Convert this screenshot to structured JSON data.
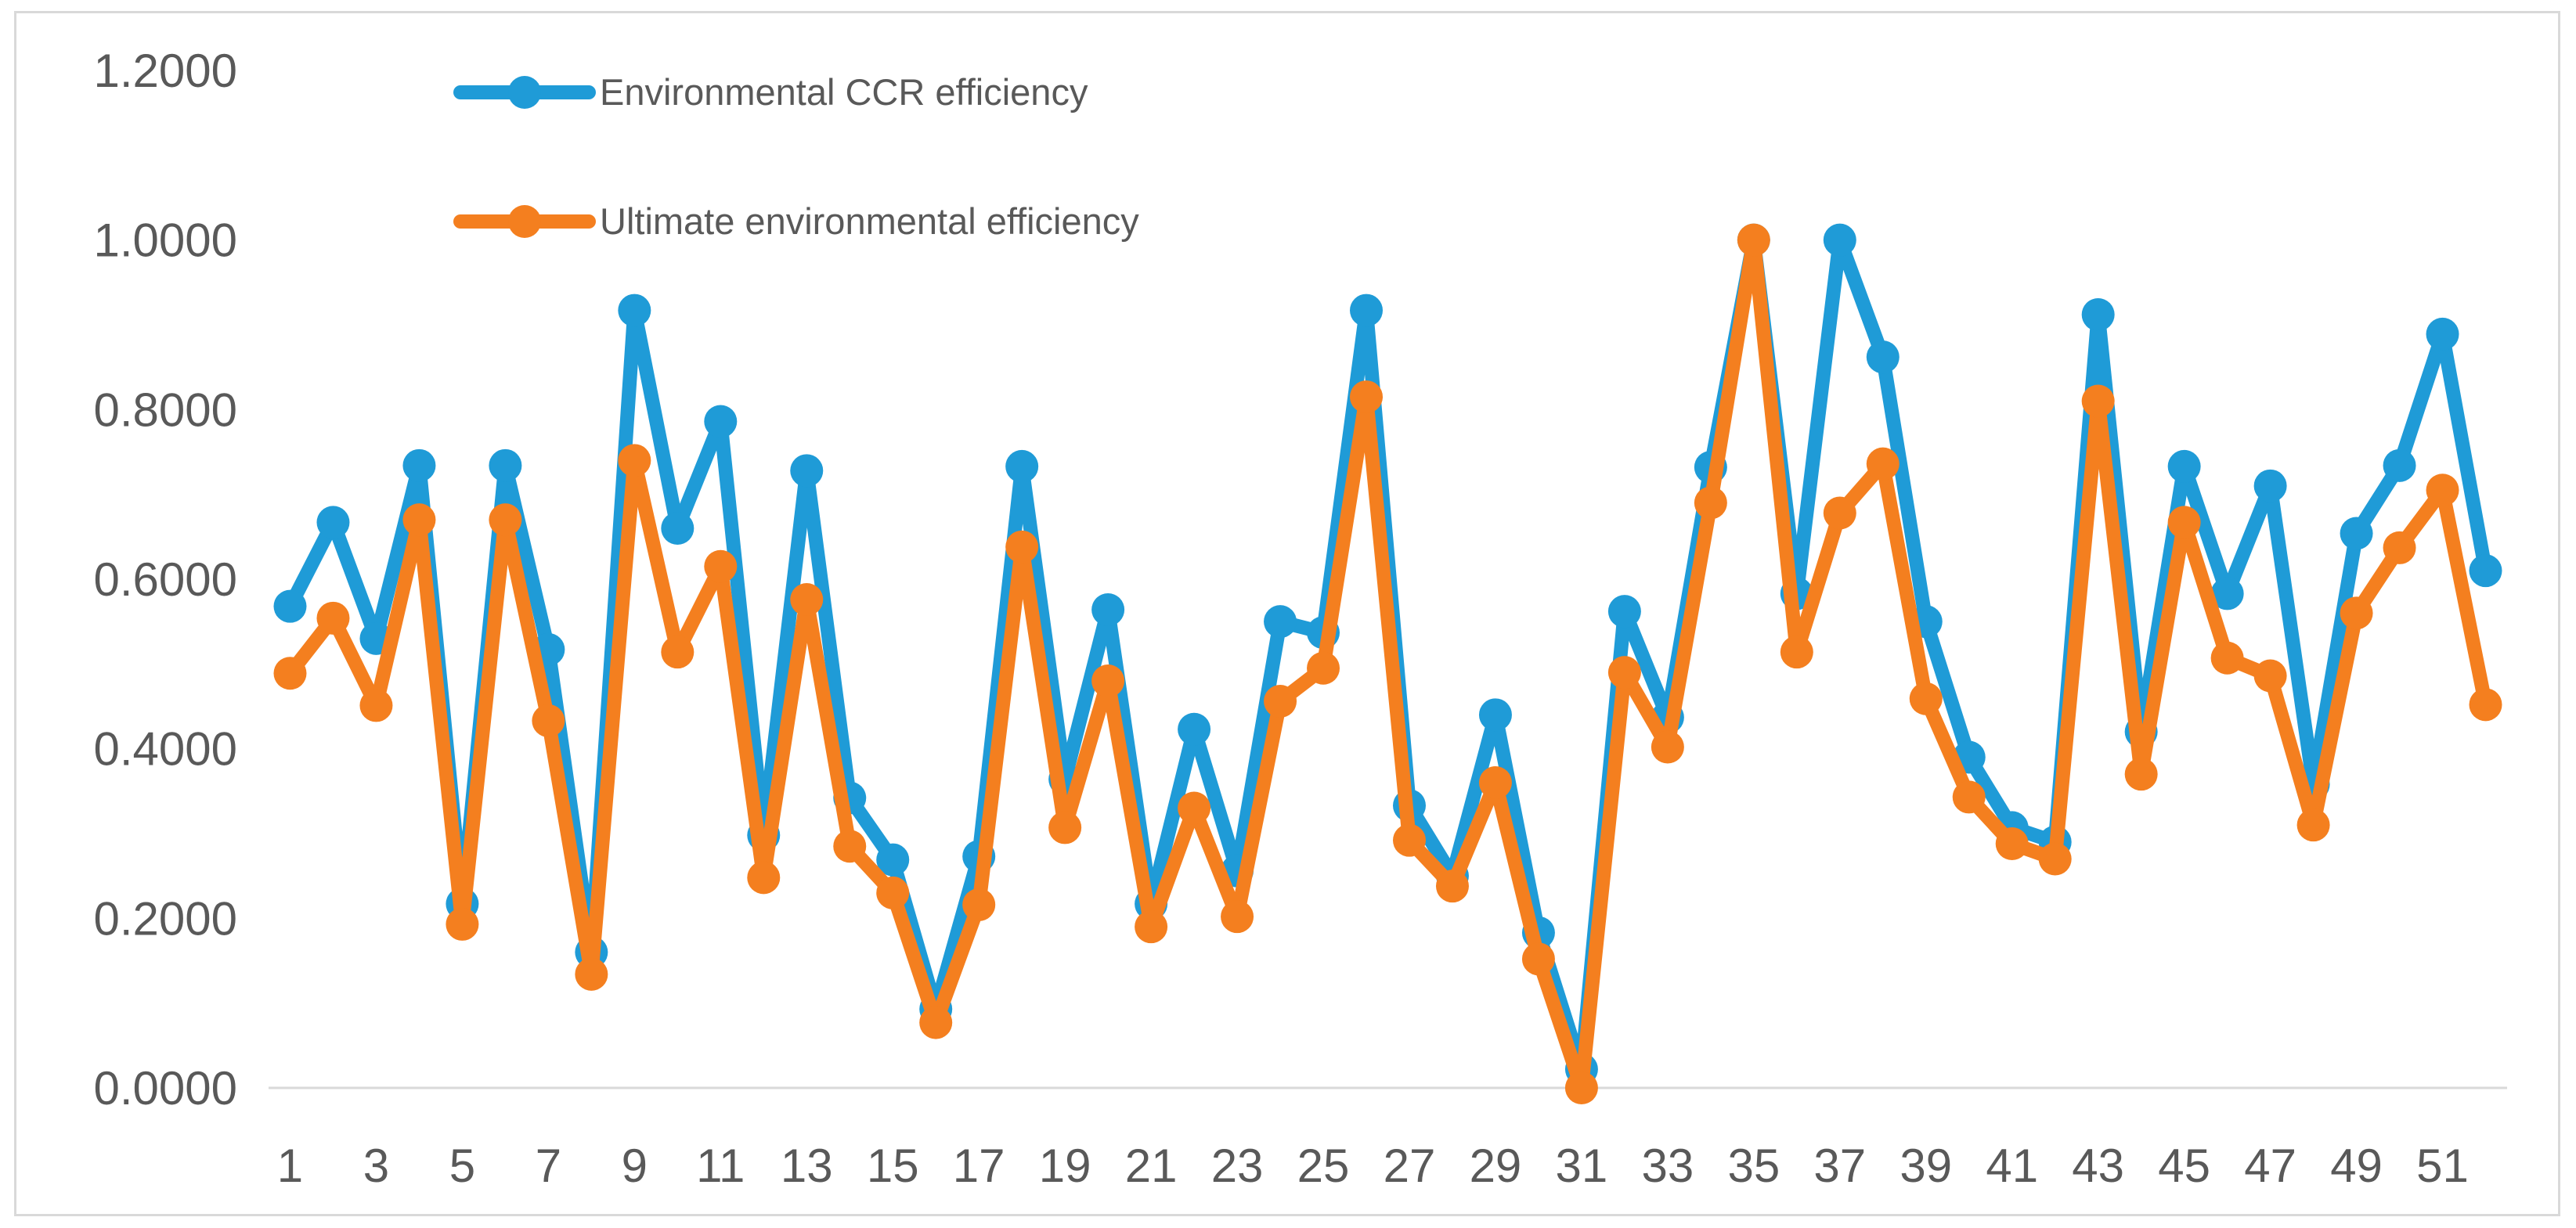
{
  "chart_data": {
    "type": "line",
    "title": "",
    "xlabel": "",
    "ylabel": "",
    "ylim": [
      0,
      1.2
    ],
    "y_ticks": [
      "0.0000",
      "0.2000",
      "0.4000",
      "0.6000",
      "0.8000",
      "1.0000",
      "1.2000"
    ],
    "categories": [
      1,
      2,
      3,
      4,
      5,
      6,
      7,
      8,
      9,
      10,
      11,
      12,
      13,
      14,
      15,
      16,
      17,
      18,
      19,
      20,
      21,
      22,
      23,
      24,
      25,
      26,
      27,
      28,
      29,
      30,
      31,
      32,
      33,
      34,
      35,
      36,
      37,
      38,
      39,
      40,
      41,
      42,
      43,
      44,
      45,
      46,
      47,
      48,
      49,
      50,
      51,
      52
    ],
    "x_tick_labels": [
      "1",
      "3",
      "5",
      "7",
      "9",
      "11",
      "13",
      "15",
      "17",
      "19",
      "21",
      "23",
      "25",
      "27",
      "29",
      "31",
      "33",
      "35",
      "37",
      "39",
      "41",
      "43",
      "45",
      "47",
      "49",
      "51"
    ],
    "grid": false,
    "legend_position": "top-left",
    "series": [
      {
        "name": "Environmental CCR efficiency",
        "color": "#1f9bd7",
        "values": [
          0.568,
          0.667,
          0.53,
          0.734,
          0.217,
          0.734,
          0.517,
          0.16,
          0.917,
          0.66,
          0.786,
          0.298,
          0.728,
          0.342,
          0.269,
          0.093,
          0.273,
          0.733,
          0.364,
          0.564,
          0.217,
          0.423,
          0.256,
          0.55,
          0.537,
          0.917,
          0.333,
          0.25,
          0.44,
          0.183,
          0.022,
          0.562,
          0.437,
          0.732,
          1.0,
          0.583,
          1.0,
          0.862,
          0.55,
          0.39,
          0.307,
          0.29,
          0.912,
          0.42,
          0.733,
          0.583,
          0.71,
          0.358,
          0.654,
          0.734,
          0.889,
          0.61
        ]
      },
      {
        "name": "Ultimate environmental efficiency",
        "color": "#f47f1f",
        "values": [
          0.489,
          0.554,
          0.451,
          0.67,
          0.193,
          0.67,
          0.433,
          0.134,
          0.74,
          0.514,
          0.615,
          0.248,
          0.576,
          0.285,
          0.23,
          0.077,
          0.216,
          0.638,
          0.307,
          0.48,
          0.19,
          0.33,
          0.202,
          0.456,
          0.495,
          0.815,
          0.292,
          0.238,
          0.36,
          0.152,
          0.0,
          0.49,
          0.402,
          0.69,
          1.0,
          0.514,
          0.678,
          0.736,
          0.459,
          0.343,
          0.288,
          0.27,
          0.81,
          0.37,
          0.667,
          0.507,
          0.486,
          0.31,
          0.56,
          0.637,
          0.705,
          0.452
        ]
      }
    ]
  }
}
